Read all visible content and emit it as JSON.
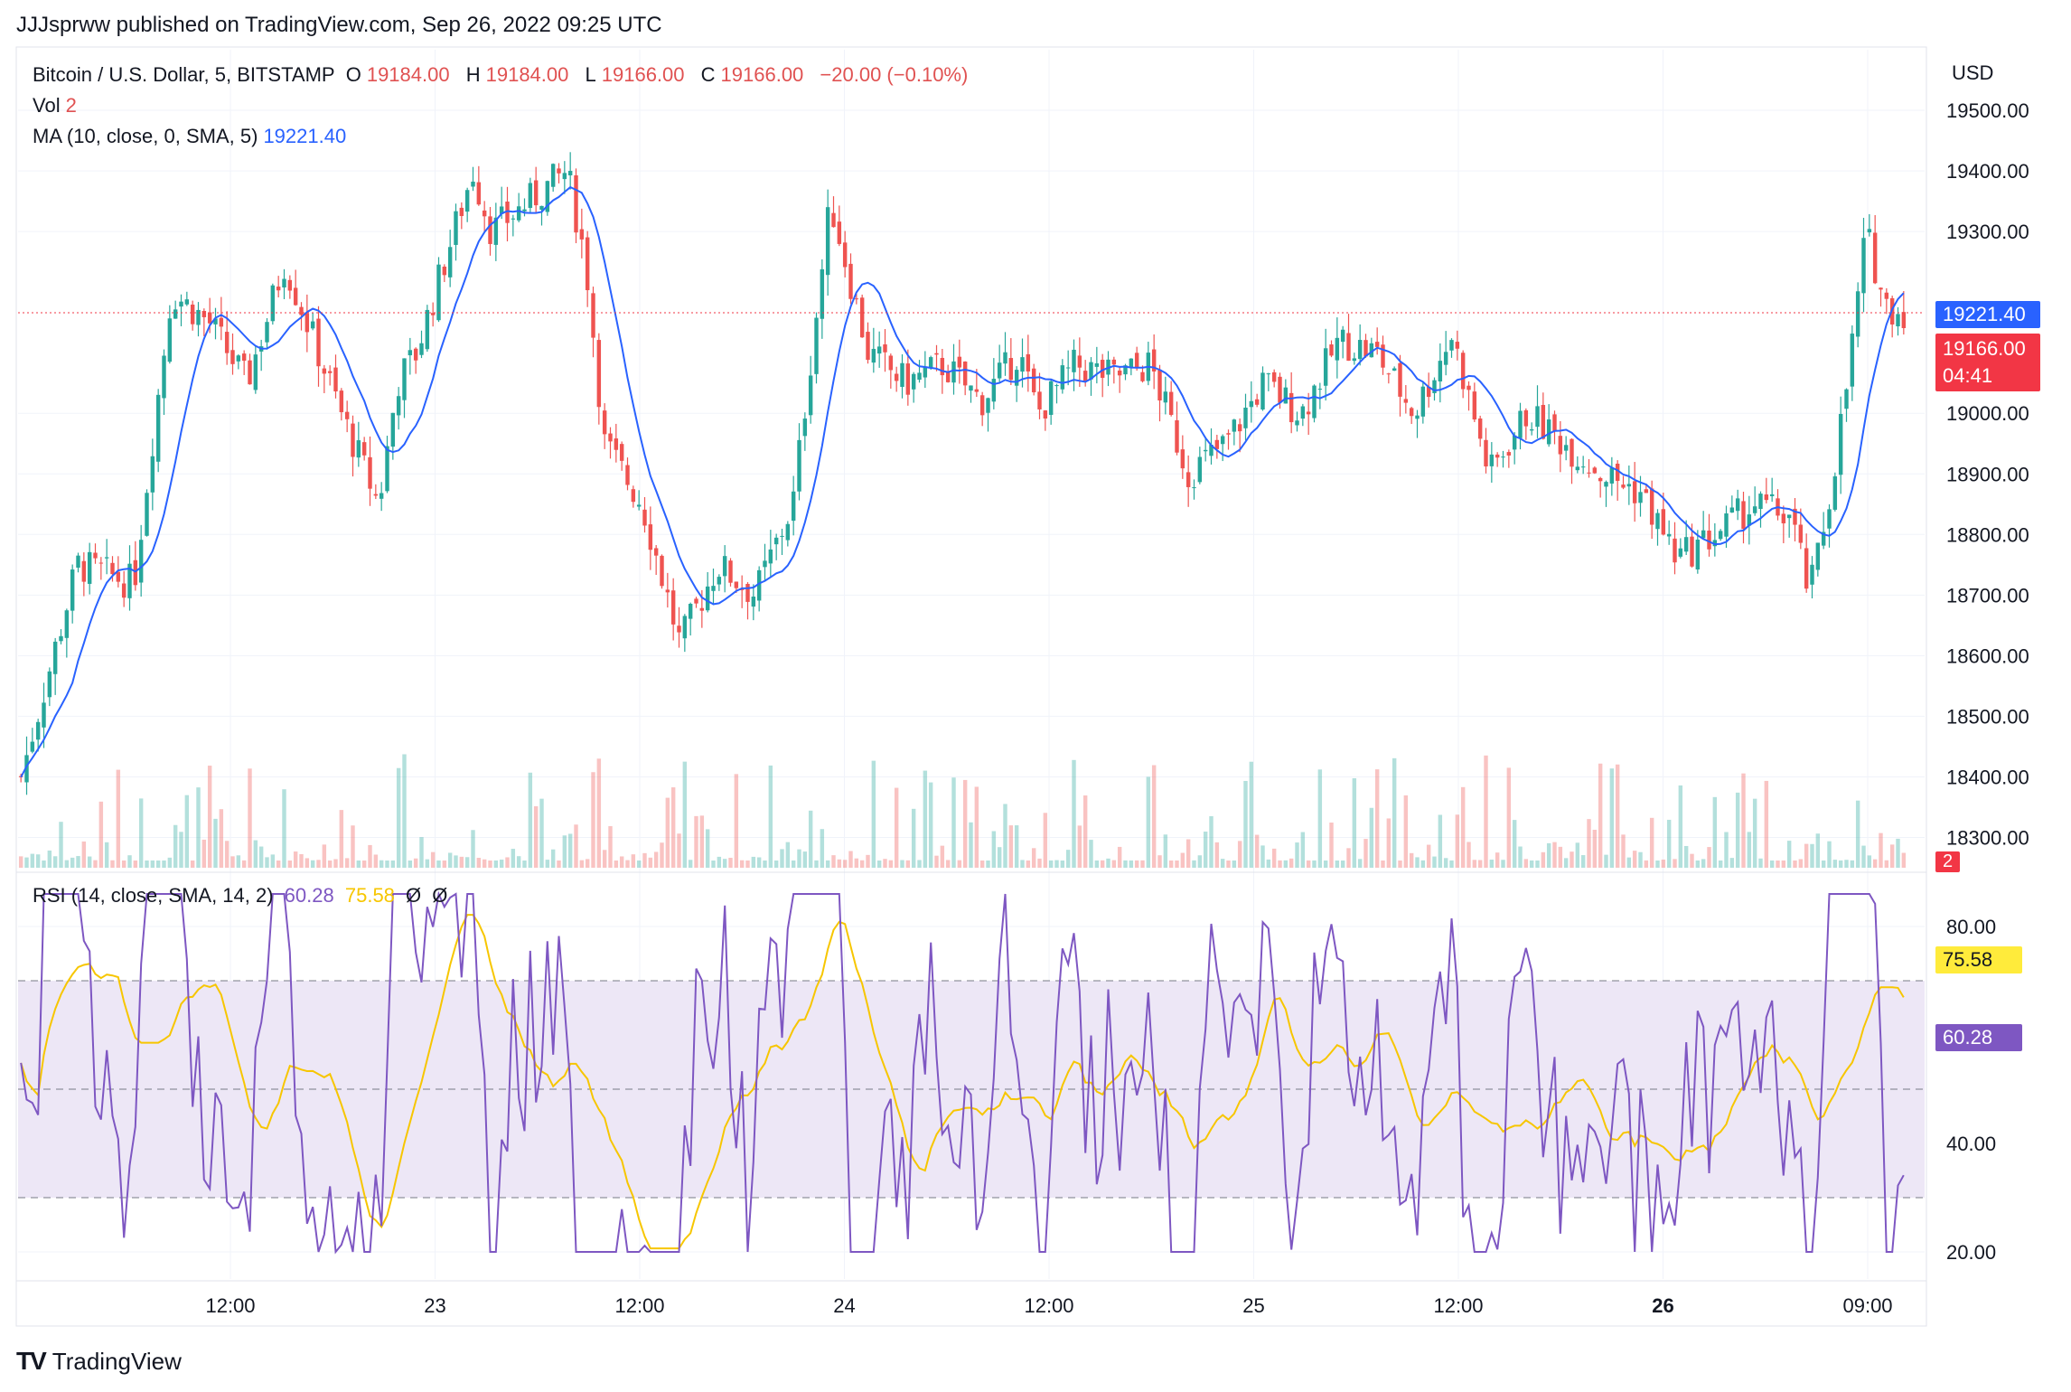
{
  "header": {
    "published": "JJJsprww published on TradingView.com, Sep 26, 2022 09:25 UTC"
  },
  "legend": {
    "symbol": "Bitcoin / U.S. Dollar, 5, BITSTAMP",
    "o_label": "O",
    "o": "19184.00",
    "h_label": "H",
    "h": "19184.00",
    "l_label": "L",
    "l": "19166.00",
    "c_label": "C",
    "c": "19166.00",
    "change": "−20.00 (−0.10%)",
    "vol_label": "Vol",
    "vol": "2",
    "ma_label": "MA (10, close, 0, SMA, 5)",
    "ma": "19221.40",
    "rsi_label": "RSI (14, close, SMA, 14, 2)",
    "rsi": "60.28",
    "rsi_ma": "75.58",
    "rsi_extra1": "Ø",
    "rsi_extra2": "Ø"
  },
  "tags": {
    "currency": "USD",
    "ma_price": "19221.40",
    "last_price": "19166.00",
    "countdown": "04:41",
    "vol": "2",
    "rsi_ma": "75.58",
    "rsi": "60.28"
  },
  "footer": {
    "brand": "TradingView",
    "logo": "TV"
  },
  "colors": {
    "up": "#26a69a",
    "down": "#ef5350",
    "ma": "#2962ff",
    "rsi": "#7e57c2",
    "rsi_ma": "#f7c600",
    "rsi_band": "#ede7f6",
    "grid": "#f0f3fa",
    "last_price": "#f23645"
  },
  "chart_data": [
    {
      "type": "candlestick",
      "title": "Bitcoin / U.S. Dollar, 5, BITSTAMP",
      "ylabel": "USD",
      "ylim": [
        18250,
        19600
      ],
      "y_ticks": [
        18300,
        18400,
        18500,
        18600,
        18700,
        18800,
        18900,
        19000,
        19300,
        19400,
        19500
      ],
      "y_tick_labels": [
        "18300.00",
        "18400.00",
        "18500.00",
        "18600.00",
        "18700.00",
        "18800.00",
        "18900.00",
        "19000.00",
        "19300.00",
        "19400.00",
        "19500.00"
      ],
      "x_ticks": [
        "12:00",
        "23",
        "12:00",
        "24",
        "12:00",
        "25",
        "12:00",
        "26",
        "09:00"
      ],
      "x_tick_bold": [
        false,
        false,
        false,
        false,
        false,
        false,
        false,
        true,
        false
      ],
      "close_path": {
        "x": [
          0,
          0.03,
          0.06,
          0.08,
          0.1,
          0.12,
          0.14,
          0.17,
          0.19,
          0.2,
          0.21,
          0.22,
          0.24,
          0.25,
          0.27,
          0.29,
          0.3,
          0.31,
          0.33,
          0.35,
          0.37,
          0.39,
          0.41,
          0.43,
          0.45,
          0.47,
          0.49,
          0.51,
          0.53,
          0.54,
          0.56,
          0.58,
          0.6,
          0.62,
          0.64,
          0.65,
          0.66,
          0.68,
          0.7,
          0.72,
          0.74,
          0.76,
          0.78,
          0.8,
          0.82,
          0.84,
          0.86,
          0.88,
          0.9,
          0.92,
          0.94,
          0.95,
          0.96,
          0.97,
          0.98,
          0.99,
          1.0
        ],
        "y": [
          18400,
          18750,
          18720,
          19200,
          19150,
          19050,
          19250,
          19000,
          18850,
          19050,
          19100,
          19200,
          19400,
          19300,
          19350,
          19400,
          19250,
          18950,
          18850,
          18620,
          18750,
          18700,
          18850,
          19350,
          19100,
          19050,
          19080,
          19020,
          19100,
          19000,
          19080,
          19060,
          19080,
          18900,
          18950,
          19000,
          19050,
          19000,
          19120,
          19100,
          19000,
          19130,
          18900,
          19000,
          18950,
          18900,
          18870,
          18760,
          18800,
          18850,
          18830,
          18700,
          18850,
          19050,
          19300,
          19180,
          19166
        ]
      },
      "ma": {
        "name": "MA (10, close, 0, SMA, 5)",
        "last": 19221.4
      },
      "last_close": 19166.0
    },
    {
      "type": "line",
      "title": "RSI (14, close, SMA, 14, 2)",
      "ylim": [
        15,
        90
      ],
      "y_ticks": [
        20,
        40,
        80
      ],
      "y_tick_labels": [
        "20.00",
        "40.00",
        "80.00"
      ],
      "bands": {
        "upper": 70,
        "middle": 50,
        "lower": 30
      },
      "rsi_last": 60.28,
      "rsi_ma_last": 75.58
    }
  ]
}
